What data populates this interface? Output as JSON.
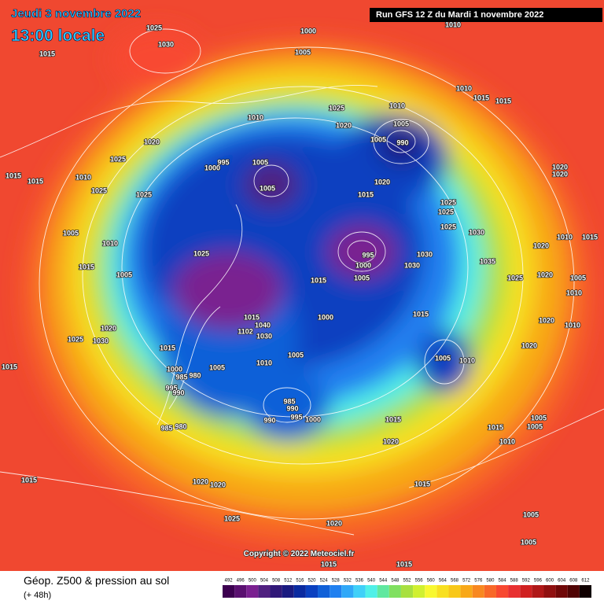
{
  "header": {
    "date": "Jeudi 3 novembre 2022",
    "time": "13:00 locale",
    "run": "Run GFS 12 Z du Mardi 1 novembre 2022"
  },
  "copyright": "Copyright © 2022 Meteociel.fr",
  "footer": {
    "title": "Géop. Z500 & pression au sol",
    "lead": "(+ 48h)"
  },
  "legend": {
    "values": [
      492,
      496,
      500,
      504,
      508,
      512,
      516,
      520,
      524,
      528,
      532,
      536,
      540,
      544,
      548,
      552,
      556,
      560,
      564,
      568,
      572,
      576,
      580,
      584,
      588,
      592,
      596,
      600,
      604,
      608,
      612
    ],
    "colors": [
      "#3c0050",
      "#5a1070",
      "#7a2090",
      "#502080",
      "#301878",
      "#1a1a80",
      "#0a2aa0",
      "#0a40c0",
      "#1060d8",
      "#2080f0",
      "#30a8f8",
      "#40d0f8",
      "#50f0e8",
      "#60e8a0",
      "#80e060",
      "#a8e040",
      "#d0f030",
      "#f8f830",
      "#f8e020",
      "#f8c818",
      "#f8a818",
      "#f88820",
      "#f86828",
      "#f84830",
      "#e83030",
      "#d02020",
      "#b01818",
      "#901010",
      "#700808",
      "#500404",
      "#100000"
    ]
  },
  "isobar_labels": [
    "1025",
    "1030",
    "1015",
    "1000",
    "1005",
    "1010",
    "1010",
    "1015",
    "1015",
    "1025",
    "1010",
    "1020",
    "1010",
    "1005",
    "1005",
    "990",
    "1020",
    "1025",
    "995",
    "1000",
    "1005",
    "1005",
    "1015",
    "1015",
    "1010",
    "1025",
    "1025",
    "1015",
    "1020",
    "1025",
    "1025",
    "1020",
    "1020",
    "1025",
    "1030",
    "1005",
    "1010",
    "1010",
    "1015",
    "1025",
    "995",
    "1030",
    "1000",
    "1030",
    "1035",
    "1020",
    "1020",
    "1025",
    "1005",
    "1015",
    "1005",
    "1015",
    "1005",
    "1010",
    "1015",
    "1000",
    "1020",
    "1010",
    "1020",
    "1025",
    "1030",
    "1015",
    "1020",
    "1005",
    "1010",
    "1005",
    "1010",
    "1015",
    "1000",
    "985",
    "980",
    "1005",
    "995",
    "990",
    "985",
    "990",
    "990",
    "995",
    "1000",
    "1015",
    "1015",
    "1005",
    "1005",
    "985",
    "980",
    "1020",
    "1010",
    "1015",
    "1015",
    "1020",
    "1020",
    "1025",
    "1020",
    "1005",
    "1005",
    "1015",
    "1015",
    "1015",
    "1040",
    "1030",
    "1102"
  ]
}
